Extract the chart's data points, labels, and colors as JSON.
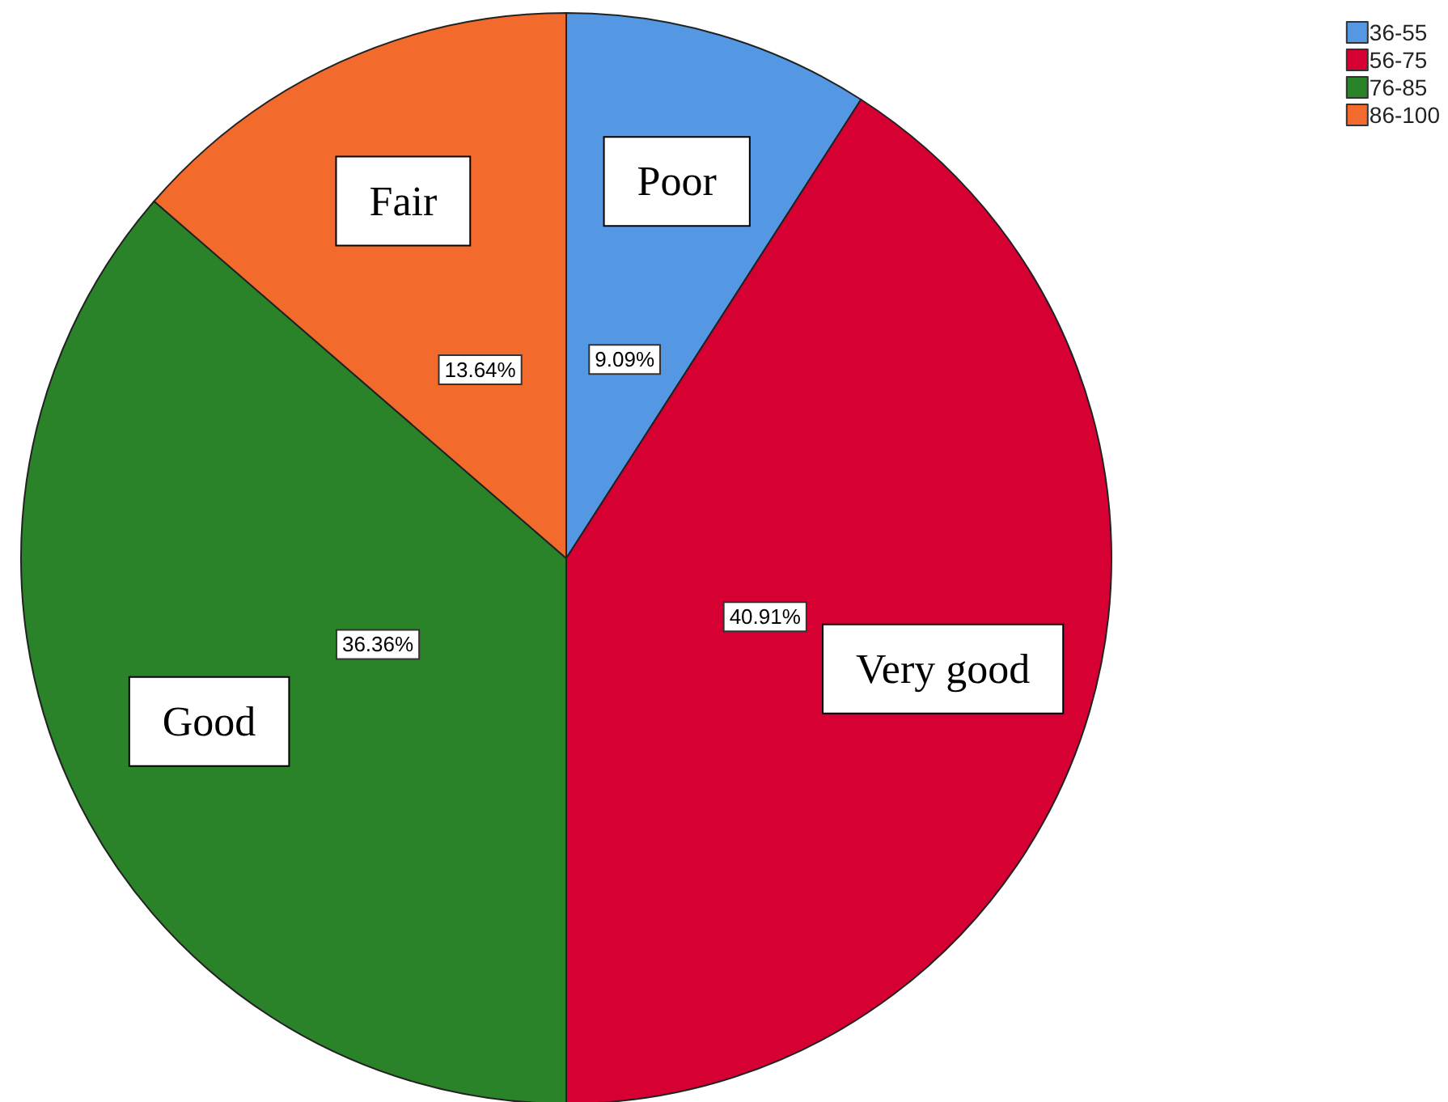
{
  "chart_data": {
    "type": "pie",
    "categories": [
      "36-55",
      "56-75",
      "76-85",
      "86-100"
    ],
    "values": [
      9.09,
      40.91,
      36.36,
      13.64
    ],
    "colors": [
      "#5497e3",
      "#d60032",
      "#2a8229",
      "#f26b2c"
    ],
    "value_labels": [
      "9.09%",
      "40.91%",
      "36.36%",
      "13.64%"
    ],
    "legend": "top right",
    "annotations": [
      "Poor",
      "Very good",
      "Good",
      "Fair"
    ]
  }
}
